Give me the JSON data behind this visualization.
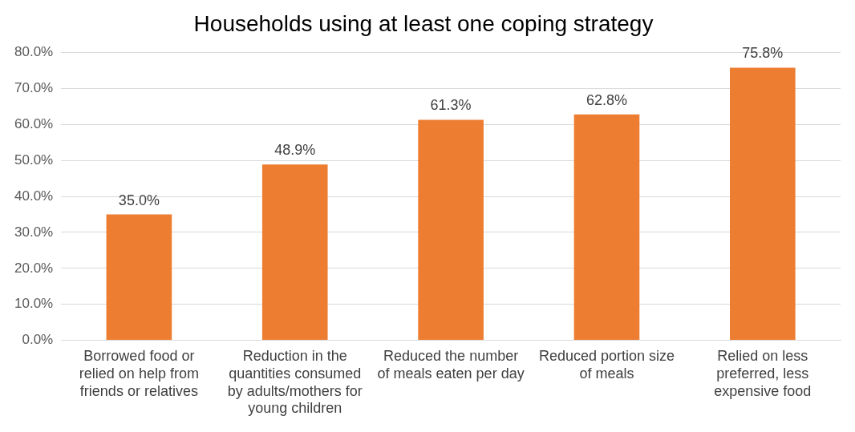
{
  "chart_data": {
    "type": "bar",
    "title": "Households using at least one coping strategy",
    "categories": [
      "Borrowed food or relied on help from friends or relatives",
      "Reduction in the quantities consumed by adults/mothers for young children",
      "Reduced the number of meals eaten per day",
      "Reduced portion size of meals",
      "Relied on less preferred, less expensive food"
    ],
    "values": [
      35.0,
      48.9,
      61.3,
      62.8,
      75.8
    ],
    "value_labels": [
      "35.0%",
      "48.9%",
      "61.3%",
      "62.8%",
      "75.8%"
    ],
    "color": "#ed7d31",
    "ylim": [
      0,
      80
    ],
    "yticks": [
      {
        "value": 0,
        "label": "0.0%"
      },
      {
        "value": 10,
        "label": "10.0%"
      },
      {
        "value": 20,
        "label": "20.0%"
      },
      {
        "value": 30,
        "label": "30.0%"
      },
      {
        "value": 40,
        "label": "40.0%"
      },
      {
        "value": 50,
        "label": "50.0%"
      },
      {
        "value": 60,
        "label": "60.0%"
      },
      {
        "value": 70,
        "label": "70.0%"
      },
      {
        "value": 80,
        "label": "80.0%"
      }
    ],
    "grid": "y"
  }
}
